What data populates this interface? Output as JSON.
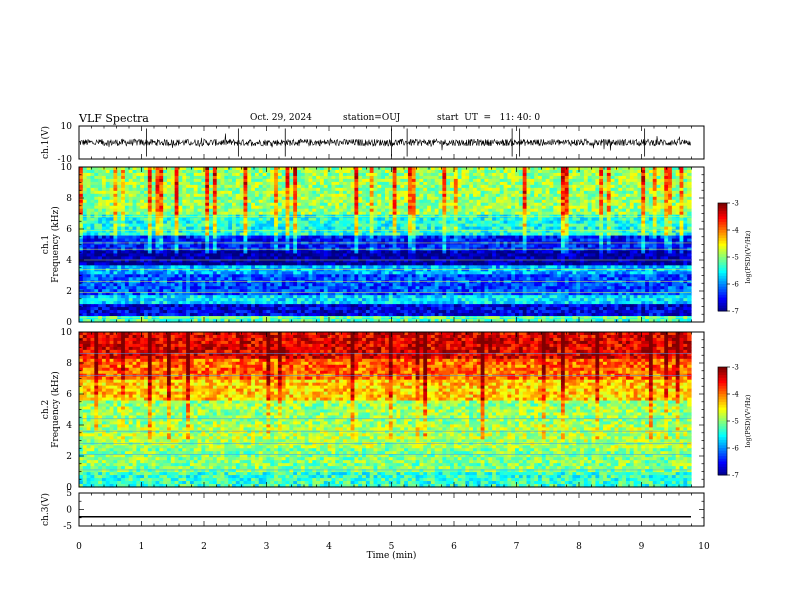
{
  "header": {
    "title": "VLF Spectra",
    "date": "Oct. 29, 2024",
    "station": "station=OUJ",
    "start": "start  UT  =   11: 40: 0"
  },
  "chart_data": [
    {
      "type": "line",
      "panel": "ch.1 waveform",
      "ylabel": "ch.1(V)",
      "ylim": [
        -10,
        10
      ],
      "yticks": [
        "10",
        "-10"
      ],
      "xlim": [
        0,
        10
      ],
      "baseline": 0,
      "series": [
        {
          "values_desc": "",
          "values": []
        }
      ]
    },
    {
      "type": "heatmap",
      "panel": "ch.1 spectrogram",
      "ylabel": "ch.1 Frequency (kHz)",
      "ylim": [
        0,
        10
      ],
      "yticks": [
        "0",
        "2",
        "4",
        "6",
        "8",
        "10"
      ],
      "xlim": [
        0,
        9.83
      ],
      "colorbar": {
        "label": "log(PSD)(V²/Hz)",
        "range": [
          -7,
          -3
        ],
        "ticks": [
          "-3",
          "-4",
          "-5",
          "-6",
          "-7"
        ]
      },
      "bands_log_psd": [
        {
          "f0": 0.0,
          "f1": 0.3,
          "v": -5.2
        },
        {
          "f0": 0.3,
          "f1": 1.2,
          "v": -6.6
        },
        {
          "f0": 1.2,
          "f1": 1.8,
          "v": -5.6
        },
        {
          "f0": 1.8,
          "f1": 3.0,
          "v": -6.2
        },
        {
          "f0": 3.0,
          "f1": 3.6,
          "v": -5.8
        },
        {
          "f0": 3.6,
          "f1": 4.6,
          "v": -6.9
        },
        {
          "f0": 4.6,
          "f1": 5.6,
          "v": -6.4
        },
        {
          "f0": 5.6,
          "f1": 7.0,
          "v": -5.4
        },
        {
          "f0": 7.0,
          "f1": 10.0,
          "v": -4.9
        }
      ]
    },
    {
      "type": "heatmap",
      "panel": "ch.2 spectrogram",
      "ylabel": "ch.2 Frequency (kHz)",
      "ylim": [
        0,
        10
      ],
      "yticks": [
        "0",
        "2",
        "4",
        "6",
        "8",
        "10"
      ],
      "xlim": [
        0,
        9.83
      ],
      "colorbar": {
        "label": "log(PSD)(V²/Hz)",
        "range": [
          -7,
          -3
        ],
        "ticks": [
          "-3",
          "-4",
          "-5",
          "-6",
          "-7"
        ]
      },
      "bands_log_psd": [
        {
          "f0": 0.0,
          "f1": 1.0,
          "v": -5.3
        },
        {
          "f0": 1.0,
          "f1": 2.5,
          "v": -5.0
        },
        {
          "f0": 2.5,
          "f1": 4.0,
          "v": -4.8
        },
        {
          "f0": 4.0,
          "f1": 5.5,
          "v": -4.9
        },
        {
          "f0": 5.5,
          "f1": 7.0,
          "v": -4.3
        },
        {
          "f0": 7.0,
          "f1": 8.2,
          "v": -3.9
        },
        {
          "f0": 8.2,
          "f1": 10.0,
          "v": -3.4
        }
      ]
    },
    {
      "type": "line",
      "panel": "ch.3 waveform",
      "ylabel": "ch.3(V)",
      "ylim": [
        -5,
        5
      ],
      "yticks": [
        "5",
        "0",
        "-5"
      ],
      "xlim": [
        0,
        10
      ],
      "xlabel": "Time (min)",
      "xticks": [
        "0",
        "1",
        "2",
        "3",
        "4",
        "5",
        "6",
        "7",
        "8",
        "9",
        "10"
      ],
      "series": [
        {
          "values": [
            -2.2,
            -2.2
          ]
        }
      ]
    }
  ]
}
